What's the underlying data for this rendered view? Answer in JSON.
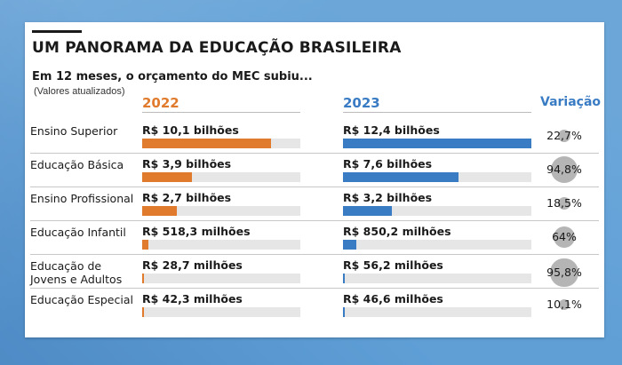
{
  "header": {
    "title": "UM PANORAMA DA EDUCAÇÃO BRASILEIRA",
    "subtitle": "Em 12 meses, o orçamento do MEC subiu...",
    "note": "(Valores atualizados)"
  },
  "colors": {
    "y2022": "#e07b2d",
    "y2023": "#3a7cc4",
    "variation_header": "#3a7cc4",
    "track": "#e6e6e6",
    "variation_circle": "#b5b5b5"
  },
  "chart_data": {
    "type": "bar",
    "units": "R$ (BRL)",
    "headers": {
      "y2022": "2022",
      "y2023": "2023",
      "variation": "Variação"
    },
    "categories": [
      "Ensino Superior",
      "Educação Básica",
      "Ensino Profissional",
      "Educação Infantil",
      "Educação de\nJovens e Adultos",
      "Educação Especial"
    ],
    "series": [
      {
        "name": "2022",
        "values": [
          10100000000,
          3900000000,
          2700000000,
          518300000,
          28700000,
          42300000
        ],
        "labels": [
          "R$ 10,1 bilhões",
          "R$ 3,9 bilhões",
          "R$ 2,7 bilhões",
          "R$ 518,3 milhões",
          "R$ 28,7 milhões",
          "R$ 42,3 milhões"
        ]
      },
      {
        "name": "2023",
        "values": [
          12400000000,
          7600000000,
          3200000000,
          850200000,
          56200000,
          46600000
        ],
        "labels": [
          "R$ 12,4 bilhões",
          "R$ 7,6 bilhões",
          "R$ 3,2 bilhões",
          "R$ 850,2 milhões",
          "R$ 56,2 milhões",
          "R$ 46,6 milhões"
        ]
      }
    ],
    "scale_max": 12400000000,
    "variation": {
      "values": [
        22.7,
        94.8,
        18.5,
        64,
        95.8,
        10.1
      ],
      "labels": [
        "22,7%",
        "94,8%",
        "18,5%",
        "64%",
        "95,8%",
        "10,1%"
      ]
    }
  }
}
